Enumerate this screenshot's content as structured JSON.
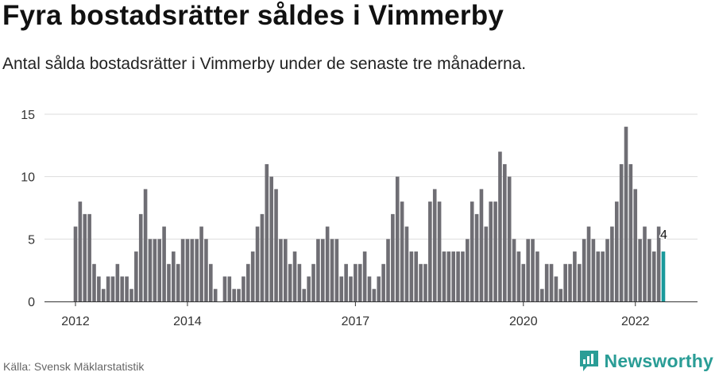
{
  "title": "Fyra bostadsrätter såldes i Vimmerby",
  "subtitle": "Antal sålda bostadsrätter i Vimmerby under de senaste tre månaderna.",
  "source": "Källa: Svensk Mäklarstatistik",
  "brand": "Newsworthy",
  "colors": {
    "bar": "#6f6e74",
    "highlight": "#1a9a9c",
    "brand": "#2a9d96",
    "grid": "#dddddd"
  },
  "chart_data": {
    "type": "bar",
    "ylim": [
      0,
      15
    ],
    "yticks": [
      "0",
      "5",
      "10",
      "15"
    ],
    "xticks": [
      {
        "label": "2012",
        "index": 0
      },
      {
        "label": "2014",
        "index": 24
      },
      {
        "label": "2017",
        "index": 60
      },
      {
        "label": "2020",
        "index": 96
      },
      {
        "label": "2022",
        "index": 120
      }
    ],
    "values": [
      6,
      8,
      7,
      7,
      3,
      2,
      1,
      2,
      2,
      3,
      2,
      2,
      1,
      4,
      7,
      9,
      5,
      5,
      5,
      6,
      3,
      4,
      3,
      5,
      5,
      5,
      5,
      6,
      5,
      3,
      1,
      0,
      2,
      2,
      1,
      1,
      2,
      3,
      4,
      6,
      7,
      11,
      10,
      9,
      5,
      5,
      3,
      4,
      3,
      1,
      2,
      3,
      5,
      5,
      6,
      5,
      5,
      2,
      3,
      2,
      3,
      3,
      4,
      2,
      1,
      2,
      3,
      5,
      7,
      10,
      8,
      6,
      4,
      4,
      3,
      3,
      8,
      9,
      8,
      4,
      4,
      4,
      4,
      4,
      5,
      8,
      7,
      9,
      6,
      8,
      8,
      12,
      11,
      10,
      5,
      4,
      3,
      5,
      5,
      4,
      1,
      3,
      3,
      2,
      1,
      3,
      3,
      4,
      3,
      5,
      6,
      5,
      4,
      4,
      5,
      6,
      8,
      11,
      14,
      11,
      9,
      5,
      6,
      5,
      4,
      6,
      4
    ],
    "highlight_last": true,
    "last_label": "4"
  }
}
